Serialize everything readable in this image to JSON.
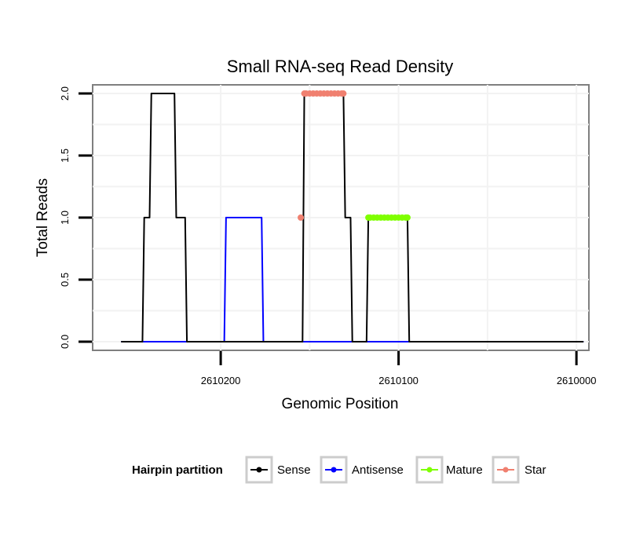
{
  "chart_data": {
    "type": "line",
    "title": "Small RNA-seq Read Density",
    "xlabel": "Genomic Position",
    "ylabel": "Total Reads",
    "xlim": [
      2610272,
      2609993
    ],
    "ylim": [
      -0.07,
      2.07
    ],
    "x_reversed": true,
    "grid": true,
    "x_ticks": [
      2610200,
      2610100,
      2610000
    ],
    "x_tick_labels": [
      "2610200",
      "2610100",
      "2610000"
    ],
    "y_ticks": [
      0.0,
      0.5,
      1.0,
      1.5,
      2.0
    ],
    "y_tick_labels": [
      "0.0",
      "0.5",
      "1.0",
      "1.5",
      "2.0"
    ],
    "legend": {
      "title": "Hairpin partition",
      "position": "bottom",
      "entries": [
        "Sense",
        "Antisense",
        "Mature",
        "Star"
      ]
    },
    "series": [
      {
        "name": "Sense",
        "color": "#000000",
        "x": [
          2610256,
          2610244,
          2610243,
          2610240,
          2610239,
          2610226,
          2610225,
          2610220,
          2610219,
          2610154,
          2610153,
          2610150,
          2610149,
          2610131,
          2610130,
          2610127,
          2610126,
          2610118,
          2610117,
          2610095,
          2610094,
          2609996
        ],
        "y": [
          0,
          0,
          1,
          1,
          2,
          2,
          1,
          1,
          0,
          0,
          2,
          2,
          2,
          2,
          1,
          1,
          0,
          0,
          1,
          1,
          0,
          0
        ]
      },
      {
        "name": "Antisense",
        "color": "#0000ff",
        "x": [
          2610256,
          2610198,
          2610197,
          2610177,
          2610176,
          2609996
        ],
        "y": [
          0,
          0,
          1,
          1,
          0,
          0
        ]
      },
      {
        "name": "Mature",
        "color": "#7fff00",
        "x": [
          2610117,
          2610116,
          2610114,
          2610112,
          2610110,
          2610108,
          2610106,
          2610104,
          2610102,
          2610100,
          2610098,
          2610096,
          2610095
        ],
        "y": [
          1,
          1,
          1,
          1,
          1,
          1,
          1,
          1,
          1,
          1,
          1,
          1,
          1
        ]
      },
      {
        "name": "Star",
        "color": "#f08070",
        "x": [
          2610153,
          2610152,
          2610150,
          2610148,
          2610146,
          2610144,
          2610142,
          2610140,
          2610138,
          2610136,
          2610134,
          2610132,
          2610131
        ],
        "y": [
          2,
          2,
          2,
          2,
          2,
          2,
          2,
          2,
          2,
          2,
          2,
          2,
          2
        ],
        "extra_points": [
          {
            "x": 2610155,
            "y": 1
          }
        ]
      }
    ]
  }
}
